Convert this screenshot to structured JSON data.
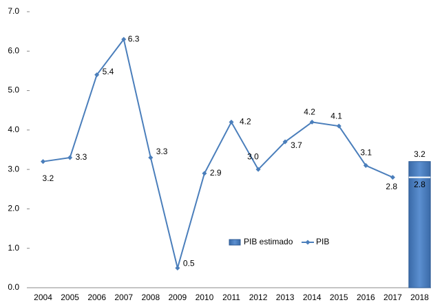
{
  "chart_data": {
    "type": "line-bar",
    "categories": [
      "2004",
      "2005",
      "2006",
      "2007",
      "2008",
      "2009",
      "2010",
      "2011",
      "2012",
      "2013",
      "2014",
      "2015",
      "2016",
      "2017",
      "2018"
    ],
    "series": [
      {
        "name": "PIB estimado",
        "type": "bar",
        "color": "#4f81bd",
        "values": [
          null,
          null,
          null,
          null,
          null,
          null,
          null,
          null,
          null,
          null,
          null,
          null,
          null,
          null,
          3.2
        ],
        "value_labels": [
          null,
          null,
          null,
          null,
          null,
          null,
          null,
          null,
          null,
          null,
          null,
          null,
          null,
          null,
          "3.2"
        ],
        "lower_values": [
          null,
          null,
          null,
          null,
          null,
          null,
          null,
          null,
          null,
          null,
          null,
          null,
          null,
          null,
          2.8
        ],
        "lower_value_labels": [
          null,
          null,
          null,
          null,
          null,
          null,
          null,
          null,
          null,
          null,
          null,
          null,
          null,
          null,
          "2.8"
        ]
      },
      {
        "name": "PIB",
        "type": "line",
        "color": "#4a7ebb",
        "values": [
          3.2,
          3.3,
          5.4,
          6.3,
          3.3,
          0.5,
          2.9,
          4.2,
          3.0,
          3.7,
          4.2,
          4.1,
          3.1,
          2.8,
          null
        ],
        "value_labels": [
          "3.2",
          "3.3",
          "5.4",
          "6.3",
          "3.3",
          "0.5",
          "2.9",
          "4.2",
          "3.0",
          "3.7",
          "4.2",
          "4.1",
          "3.1",
          "2.8",
          null
        ]
      }
    ],
    "ylim": [
      0,
      7
    ],
    "yticks": [
      {
        "value": 0,
        "label": "0.0"
      },
      {
        "value": 1,
        "label": "1.0"
      },
      {
        "value": 2,
        "label": "2.0"
      },
      {
        "value": 3,
        "label": "3.0"
      },
      {
        "value": 4,
        "label": "4.0"
      },
      {
        "value": 5,
        "label": "5.0"
      },
      {
        "value": 6,
        "label": "6.0"
      },
      {
        "value": 7,
        "label": "7.0"
      }
    ],
    "legend": "bottom-center"
  }
}
